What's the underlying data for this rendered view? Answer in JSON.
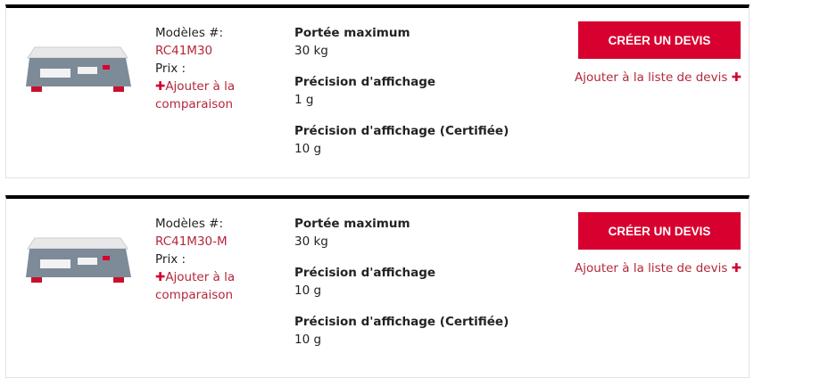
{
  "products": [
    {
      "models_label": "Modèles #:",
      "model": "RC41M30",
      "price_label": "Prix :",
      "compare_label": "Ajouter à la comparaison",
      "specs": [
        {
          "name": "Portée maximum",
          "value": "30 kg"
        },
        {
          "name": "Précision d'affichage",
          "value": "1 g"
        },
        {
          "name": "Précision d'affichage (Certifiée)",
          "value": "10 g"
        }
      ],
      "quote_button": "CRÉER UN DEVIS",
      "add_quote_list": "Ajouter à la liste de devis"
    },
    {
      "models_label": "Modèles #:",
      "model": "RC41M30-M",
      "price_label": "Prix :",
      "compare_label": "Ajouter à la comparaison",
      "specs": [
        {
          "name": "Portée maximum",
          "value": "30 kg"
        },
        {
          "name": "Précision d'affichage",
          "value": "10 g"
        },
        {
          "name": "Précision d'affichage (Certifiée)",
          "value": "10 g"
        }
      ],
      "quote_button": "CRÉER UN DEVIS",
      "add_quote_list": "Ajouter à la liste de devis"
    }
  ],
  "colors": {
    "accent": "#d8002f",
    "link": "#b3283a"
  }
}
